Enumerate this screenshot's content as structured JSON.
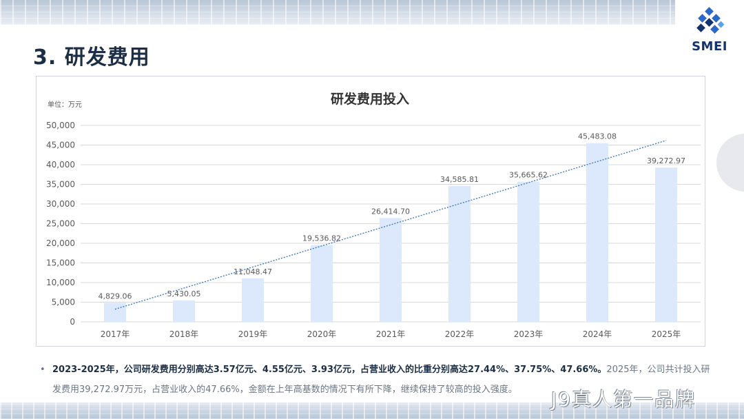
{
  "page": {
    "title": "3. 研发费用",
    "logo_text": "SMEI",
    "watermark": "J9真人第一品牌"
  },
  "chart_data": {
    "type": "bar",
    "title": "研发费用投入",
    "unit_label": "单位：万元",
    "categories": [
      "2017年",
      "2018年",
      "2019年",
      "2020年",
      "2021年",
      "2022年",
      "2023年",
      "2024年",
      "2025年"
    ],
    "series": [
      {
        "values": [
          4829.06,
          5430.05,
          11048.47,
          19536.82,
          26414.7,
          34585.81,
          35665.62,
          45483.08,
          39272.97
        ],
        "labels": [
          "4,829.06",
          "5,430.05",
          "11,048.47",
          "19,536.82",
          "26,414.70",
          "34,585.81",
          "35,665.62",
          "45,483.08",
          "39,272.97"
        ]
      }
    ],
    "ylim": [
      0,
      50000
    ],
    "yticks": [
      0,
      5000,
      10000,
      15000,
      20000,
      25000,
      30000,
      35000,
      40000,
      45000,
      50000
    ],
    "ytick_labels": [
      "0",
      "5,000",
      "10,000",
      "15,000",
      "20,000",
      "25,000",
      "30,000",
      "35,000",
      "40,000",
      "45,000",
      "50,000"
    ],
    "trendline": "linear",
    "grid": true,
    "legend": false,
    "colors": {
      "bar": "#dce8fb",
      "trend": "#3e78c2",
      "grid": "#d9d9d9",
      "text": "#595959"
    }
  },
  "bullet": {
    "bold": "2023-2025年，公司研发费用分别高达3.57亿元、4.55亿元、3.93亿元，占营业收入的比重分别高达27.44%、37.75%、47.66%。",
    "rest": "2025年，公司共计投入研发费用39,272.97万元，占营业收入的47.66%，金额在上年高基数的情况下有所下降，继续保持了较高的投入强度。"
  }
}
